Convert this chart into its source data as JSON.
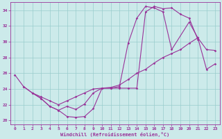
{
  "xlabel": "Windchill (Refroidissement éolien,°C)",
  "bg_color": "#cceaea",
  "grid_color": "#99cccc",
  "line_color": "#993399",
  "xlim": [
    -0.5,
    23.5
  ],
  "ylim": [
    19.5,
    35.0
  ],
  "xticks": [
    0,
    1,
    2,
    3,
    4,
    5,
    6,
    7,
    8,
    9,
    10,
    11,
    12,
    13,
    14,
    15,
    16,
    17,
    18,
    19,
    20,
    21,
    22,
    23
  ],
  "yticks": [
    20,
    22,
    24,
    26,
    28,
    30,
    32,
    34
  ],
  "line1_x": [
    0,
    1,
    2,
    3,
    4,
    5,
    6,
    7,
    8,
    9,
    10,
    11,
    12,
    13,
    14,
    15,
    16,
    17,
    18,
    19,
    20,
    21
  ],
  "line1_y": [
    25.8,
    24.3,
    23.5,
    22.8,
    21.8,
    21.3,
    20.5,
    20.4,
    20.5,
    21.5,
    24.1,
    24.1,
    24.1,
    24.1,
    24.1,
    33.8,
    34.5,
    34.2,
    34.3,
    33.5,
    33.0,
    30.3
  ],
  "line2_x": [
    2,
    3,
    4,
    5,
    6,
    7,
    8,
    9,
    10,
    11,
    12,
    13,
    14,
    15,
    16,
    17,
    18,
    20,
    21,
    22,
    23
  ],
  "line2_y": [
    23.5,
    22.8,
    21.8,
    21.3,
    21.8,
    21.4,
    22.1,
    23.5,
    24.1,
    24.1,
    24.3,
    29.8,
    33.0,
    34.5,
    34.3,
    33.8,
    29.0,
    32.5,
    30.5,
    29.0,
    28.9
  ],
  "line3_x": [
    1,
    2,
    3,
    4,
    5,
    6,
    7,
    8,
    9,
    10,
    11,
    12,
    13,
    14,
    15,
    16,
    17,
    18,
    19,
    20,
    21,
    22,
    23
  ],
  "line3_y": [
    24.3,
    23.5,
    23.0,
    22.5,
    22.0,
    22.5,
    23.0,
    23.5,
    24.0,
    24.1,
    24.2,
    24.5,
    25.2,
    26.0,
    26.5,
    27.3,
    28.0,
    28.5,
    29.0,
    29.8,
    30.5,
    26.5,
    27.2
  ]
}
